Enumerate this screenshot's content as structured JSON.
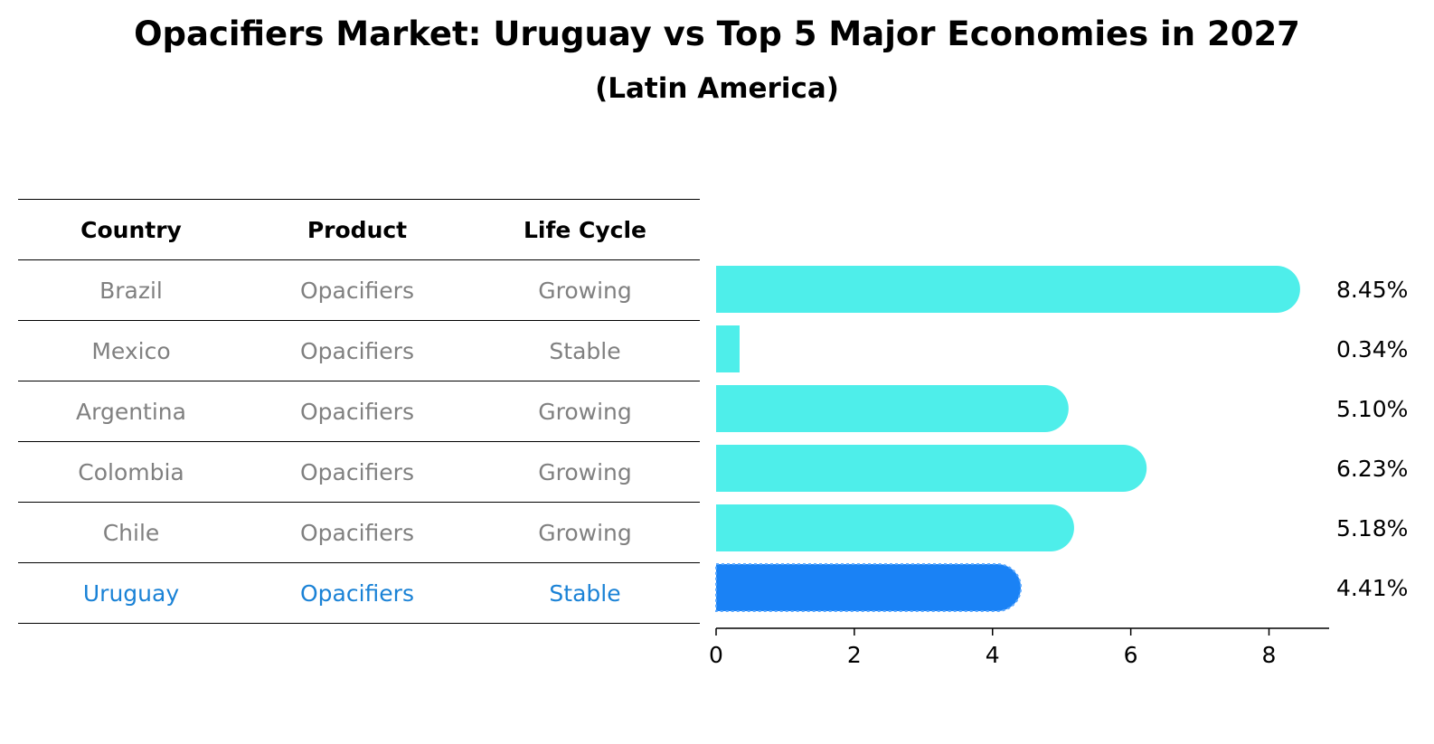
{
  "title": "Opacifiers Market: Uruguay vs Top 5 Major Economies in 2027",
  "subtitle": "(Latin America)",
  "colors": {
    "bar": "#4eeeea",
    "highlight_bar": "#1a82f5",
    "highlight_text": "#1a82d6",
    "row_text": "#808080"
  },
  "table": {
    "headers": [
      "Country",
      "Product",
      "Life Cycle"
    ],
    "rows": [
      {
        "country": "Brazil",
        "product": "Opacifiers",
        "life_cycle": "Growing"
      },
      {
        "country": "Mexico",
        "product": "Opacifiers",
        "life_cycle": "Stable"
      },
      {
        "country": "Argentina",
        "product": "Opacifiers",
        "life_cycle": "Growing"
      },
      {
        "country": "Colombia",
        "product": "Opacifiers",
        "life_cycle": "Growing"
      },
      {
        "country": "Chile",
        "product": "Opacifiers",
        "life_cycle": "Growing"
      },
      {
        "country": "Uruguay",
        "product": "Opacifiers",
        "life_cycle": "Stable"
      }
    ],
    "highlight_row": 5
  },
  "chart_data": {
    "type": "bar",
    "orientation": "horizontal",
    "categories": [
      "Brazil",
      "Mexico",
      "Argentina",
      "Colombia",
      "Chile",
      "Uruguay"
    ],
    "values": [
      8.45,
      0.34,
      5.1,
      6.23,
      5.18,
      4.41
    ],
    "value_labels": [
      "8.45%",
      "0.34%",
      "5.10%",
      "6.23%",
      "5.18%",
      "4.41%"
    ],
    "highlight": "Uruguay",
    "xlim": [
      0,
      8.87
    ],
    "xticks": [
      0,
      2,
      4,
      6,
      8
    ],
    "xlabel": "",
    "ylabel": "",
    "grid": false,
    "legend": "none"
  }
}
